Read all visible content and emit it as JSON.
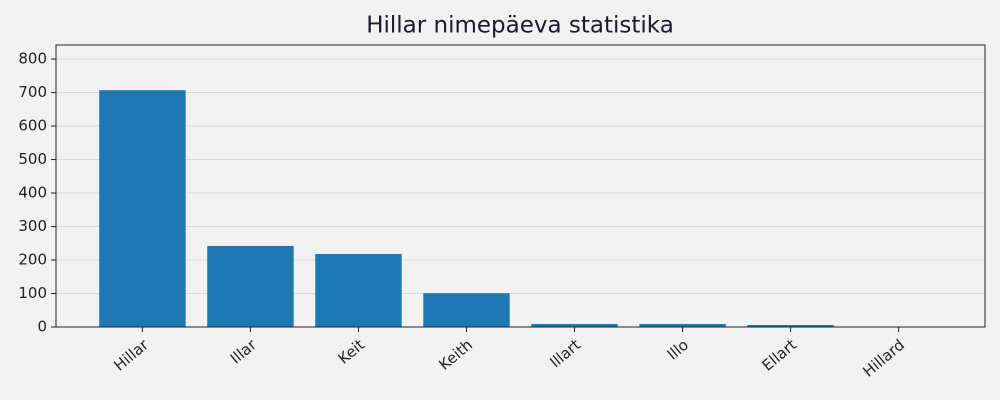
{
  "chart_data": {
    "type": "bar",
    "title": "Hillar nimepäeva statistika",
    "categories": [
      "Hillar",
      "Illar",
      "Keit",
      "Keith",
      "Illart",
      "Illo",
      "Ellart",
      "Hillard"
    ],
    "values": [
      707,
      242,
      218,
      101,
      9,
      9,
      6,
      1
    ],
    "color": "#1f77b4",
    "ylim": [
      0,
      842
    ],
    "yticks": [
      0,
      100,
      200,
      300,
      400,
      500,
      600,
      700,
      800
    ],
    "grid": true
  }
}
